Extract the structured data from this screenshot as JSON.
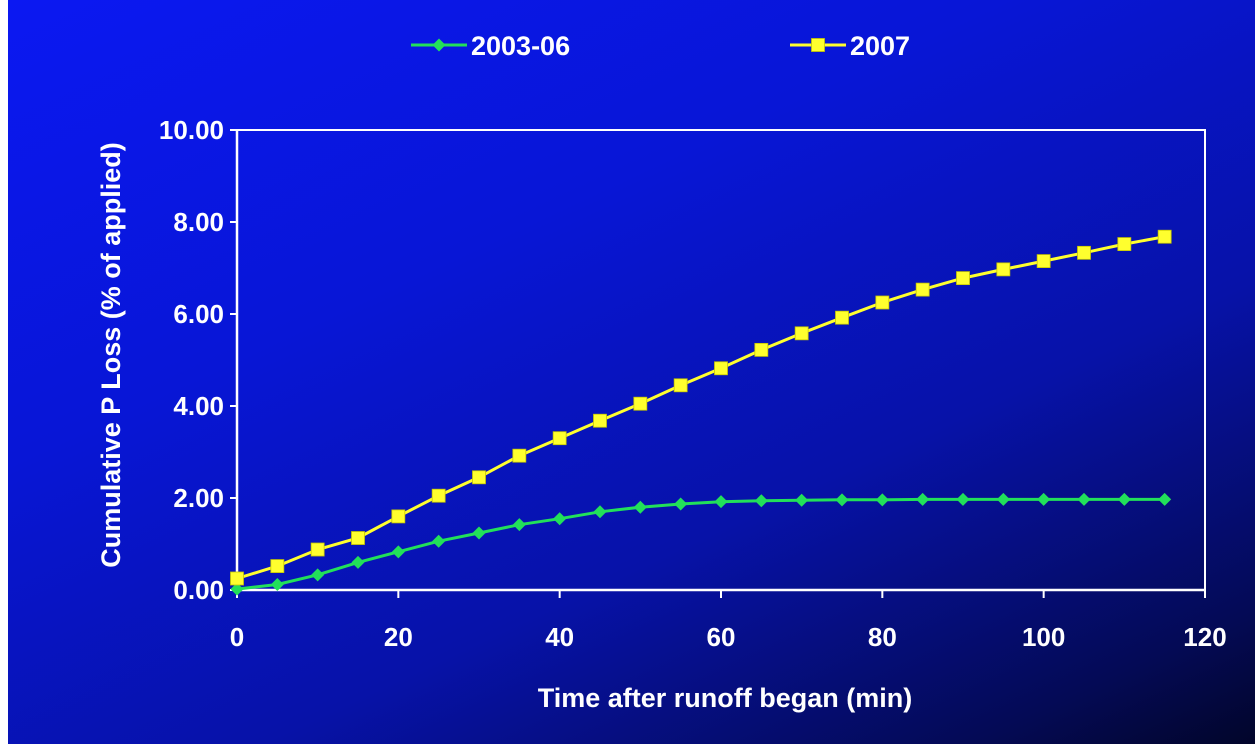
{
  "chart_data": {
    "type": "line",
    "title": "",
    "xlabel": "Time after runoff began (min)",
    "ylabel": "Cumulative P Loss (% of applied)",
    "xlim": [
      0,
      120
    ],
    "ylim": [
      0,
      10
    ],
    "x_ticks": [
      "0",
      "20",
      "40",
      "60",
      "80",
      "100",
      "120"
    ],
    "y_ticks": [
      "0.00",
      "2.00",
      "4.00",
      "6.00",
      "8.00",
      "10.00"
    ],
    "grid": false,
    "legend_position": "top",
    "x": [
      0,
      5,
      10,
      15,
      20,
      25,
      30,
      35,
      40,
      45,
      50,
      55,
      60,
      65,
      70,
      75,
      80,
      85,
      90,
      95,
      100,
      105,
      110,
      115
    ],
    "series": [
      {
        "name": "2003-06",
        "color": "#22e05a",
        "marker": "diamond",
        "values": [
          0.02,
          0.12,
          0.33,
          0.6,
          0.83,
          1.06,
          1.24,
          1.42,
          1.55,
          1.7,
          1.8,
          1.87,
          1.92,
          1.94,
          1.95,
          1.96,
          1.96,
          1.97,
          1.97,
          1.97,
          1.97,
          1.97,
          1.97,
          1.97
        ]
      },
      {
        "name": "2007",
        "color": "#ffff2e",
        "marker": "square",
        "values": [
          0.25,
          0.52,
          0.88,
          1.13,
          1.6,
          2.05,
          2.45,
          2.92,
          3.3,
          3.68,
          4.05,
          4.45,
          4.82,
          5.22,
          5.58,
          5.92,
          6.25,
          6.53,
          6.78,
          6.97,
          7.15,
          7.33,
          7.52,
          7.68
        ]
      }
    ],
    "axis_color": "#ffffff"
  }
}
